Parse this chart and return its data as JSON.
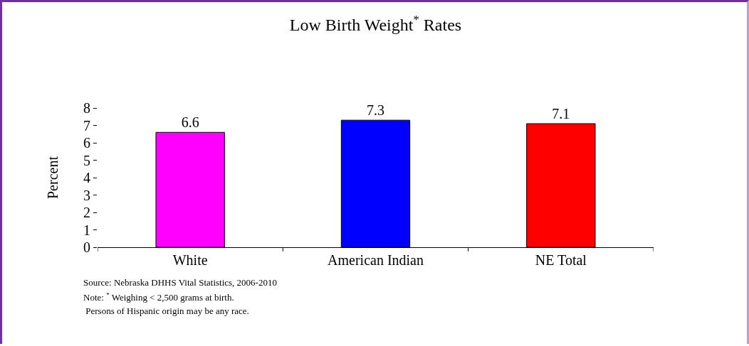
{
  "chart_data": {
    "type": "bar",
    "title": "Low Birth Weight$^{*}$ Rates",
    "ylabel": "Percent",
    "categories": [
      "White",
      "American Indian",
      "NE Total"
    ],
    "values": [
      6.6,
      7.3,
      7.1
    ],
    "colors": [
      "#ff00ff",
      "#0000ff",
      "#ff0000"
    ],
    "ylim": [
      0,
      8
    ],
    "yticks": [
      0,
      1,
      2,
      3,
      4,
      5,
      6,
      7,
      8
    ],
    "grid": false,
    "data_labels": true,
    "annotations": [
      "Source: Nebraska DHHS Vital Statistics, 2006-2010",
      "Note: $^{*}$ Weighing < 2,500 grams at birth.",
      " Persons of Hispanic origin may be any race."
    ]
  }
}
